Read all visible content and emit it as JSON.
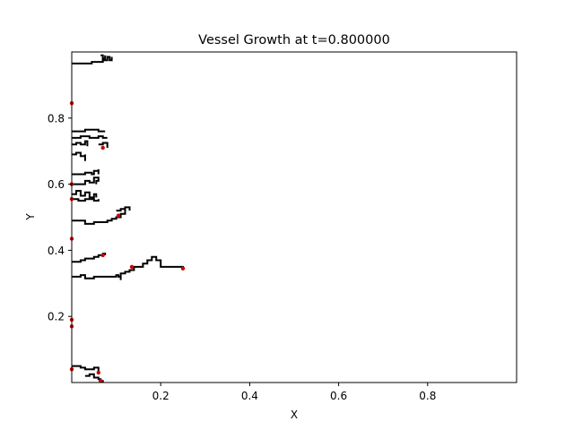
{
  "chart_data": {
    "type": "line",
    "title": "Vessel Growth at t=0.800000",
    "xlabel": "X",
    "ylabel": "Y",
    "xlim": [
      0.0,
      1.0
    ],
    "ylim": [
      0.0,
      1.0
    ],
    "xticks": [
      0.2,
      0.4,
      0.6,
      0.8
    ],
    "xtick_labels": [
      "0.2",
      "0.4",
      "0.6",
      "0.8"
    ],
    "yticks": [
      0.2,
      0.4,
      0.6,
      0.8
    ],
    "ytick_labels": [
      "0.2",
      "0.4",
      "0.6",
      "0.8"
    ],
    "grid": false,
    "legend": "none",
    "colors": {
      "vessel": "#000000",
      "tip": "#cc0000",
      "frame": "#000000"
    },
    "series": [
      {
        "values": [
          [
            0.0,
            0.965
          ],
          [
            0.03,
            0.965
          ],
          [
            0.045,
            0.97
          ],
          [
            0.06,
            0.97
          ],
          [
            0.07,
            0.98
          ],
          [
            0.075,
            0.99
          ]
        ]
      },
      {
        "values": [
          [
            0.065,
            0.99
          ],
          [
            0.07,
            0.975
          ],
          [
            0.08,
            0.985
          ],
          [
            0.085,
            0.975
          ],
          [
            0.09,
            0.985
          ]
        ]
      },
      {
        "values": [
          [
            0.0,
            0.76
          ],
          [
            0.02,
            0.76
          ],
          [
            0.03,
            0.765
          ],
          [
            0.05,
            0.765
          ],
          [
            0.06,
            0.76
          ],
          [
            0.075,
            0.76
          ]
        ]
      },
      {
        "values": [
          [
            0.0,
            0.74
          ],
          [
            0.02,
            0.745
          ],
          [
            0.04,
            0.74
          ],
          [
            0.06,
            0.745
          ],
          [
            0.07,
            0.74
          ],
          [
            0.08,
            0.74
          ]
        ]
      },
      {
        "values": [
          [
            0.0,
            0.72
          ],
          [
            0.01,
            0.725
          ],
          [
            0.02,
            0.72
          ],
          [
            0.03,
            0.73
          ],
          [
            0.035,
            0.715
          ]
        ]
      },
      {
        "values": [
          [
            0.06,
            0.72
          ],
          [
            0.07,
            0.725
          ],
          [
            0.08,
            0.71
          ]
        ]
      },
      {
        "values": [
          [
            0.0,
            0.69
          ],
          [
            0.01,
            0.695
          ],
          [
            0.02,
            0.685
          ],
          [
            0.03,
            0.69
          ],
          [
            0.03,
            0.67
          ]
        ]
      },
      {
        "values": [
          [
            0.0,
            0.63
          ],
          [
            0.02,
            0.63
          ],
          [
            0.03,
            0.635
          ],
          [
            0.045,
            0.63
          ],
          [
            0.05,
            0.64
          ],
          [
            0.06,
            0.645
          ],
          [
            0.06,
            0.63
          ]
        ]
      },
      {
        "values": [
          [
            0.0,
            0.6
          ],
          [
            0.02,
            0.6
          ],
          [
            0.03,
            0.61
          ],
          [
            0.04,
            0.605
          ],
          [
            0.05,
            0.62
          ],
          [
            0.06,
            0.61
          ],
          [
            0.055,
            0.6
          ]
        ]
      },
      {
        "values": [
          [
            0.0,
            0.57
          ],
          [
            0.01,
            0.58
          ],
          [
            0.02,
            0.565
          ],
          [
            0.03,
            0.575
          ],
          [
            0.04,
            0.56
          ],
          [
            0.05,
            0.57
          ],
          [
            0.055,
            0.56
          ]
        ]
      },
      {
        "values": [
          [
            0.0,
            0.555
          ],
          [
            0.015,
            0.55
          ],
          [
            0.03,
            0.555
          ],
          [
            0.05,
            0.55
          ],
          [
            0.06,
            0.555
          ]
        ]
      },
      {
        "values": [
          [
            0.0,
            0.49
          ],
          [
            0.02,
            0.49
          ],
          [
            0.03,
            0.48
          ],
          [
            0.05,
            0.485
          ],
          [
            0.08,
            0.49
          ],
          [
            0.09,
            0.495
          ],
          [
            0.1,
            0.5
          ],
          [
            0.11,
            0.51
          ],
          [
            0.12,
            0.52
          ],
          [
            0.12,
            0.53
          ],
          [
            0.13,
            0.52
          ]
        ]
      },
      {
        "values": [
          [
            0.1,
            0.52
          ],
          [
            0.11,
            0.525
          ],
          [
            0.12,
            0.52
          ]
        ]
      },
      {
        "values": [
          [
            0.0,
            0.365
          ],
          [
            0.02,
            0.37
          ],
          [
            0.03,
            0.375
          ],
          [
            0.05,
            0.38
          ],
          [
            0.06,
            0.385
          ],
          [
            0.07,
            0.39
          ],
          [
            0.075,
            0.385
          ]
        ]
      },
      {
        "values": [
          [
            0.0,
            0.32
          ],
          [
            0.02,
            0.325
          ],
          [
            0.03,
            0.315
          ],
          [
            0.05,
            0.32
          ],
          [
            0.08,
            0.32
          ],
          [
            0.1,
            0.325
          ],
          [
            0.105,
            0.32
          ],
          [
            0.11,
            0.31
          ],
          [
            0.11,
            0.33
          ],
          [
            0.12,
            0.335
          ],
          [
            0.13,
            0.34
          ],
          [
            0.14,
            0.35
          ],
          [
            0.15,
            0.35
          ],
          [
            0.16,
            0.36
          ],
          [
            0.17,
            0.37
          ],
          [
            0.18,
            0.38
          ],
          [
            0.19,
            0.37
          ],
          [
            0.2,
            0.36
          ],
          [
            0.2,
            0.35
          ],
          [
            0.22,
            0.35
          ],
          [
            0.24,
            0.35
          ],
          [
            0.25,
            0.345
          ]
        ]
      },
      {
        "values": [
          [
            0.0,
            0.05
          ],
          [
            0.01,
            0.05
          ],
          [
            0.02,
            0.045
          ],
          [
            0.03,
            0.04
          ],
          [
            0.05,
            0.045
          ],
          [
            0.06,
            0.04
          ],
          [
            0.06,
            0.025
          ]
        ]
      },
      {
        "values": [
          [
            0.03,
            0.02
          ],
          [
            0.04,
            0.025
          ],
          [
            0.05,
            0.015
          ],
          [
            0.06,
            0.01
          ],
          [
            0.065,
            0.005
          ],
          [
            0.07,
            0.0
          ]
        ]
      }
    ],
    "tips": [
      [
        0.0,
        0.845
      ],
      [
        0.07,
        0.71
      ],
      [
        0.0,
        0.6
      ],
      [
        0.0,
        0.555
      ],
      [
        0.105,
        0.505
      ],
      [
        0.0,
        0.435
      ],
      [
        0.07,
        0.385
      ],
      [
        0.25,
        0.345
      ],
      [
        0.135,
        0.35
      ],
      [
        0.0,
        0.19
      ],
      [
        0.0,
        0.17
      ],
      [
        0.0,
        0.04
      ],
      [
        0.06,
        0.03
      ],
      [
        0.065,
        0.005
      ]
    ]
  }
}
